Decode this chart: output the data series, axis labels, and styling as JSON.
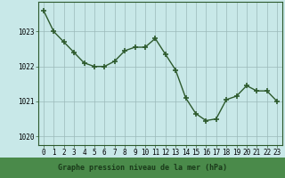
{
  "x": [
    0,
    1,
    2,
    3,
    4,
    5,
    6,
    7,
    8,
    9,
    10,
    11,
    12,
    13,
    14,
    15,
    16,
    17,
    18,
    19,
    20,
    21,
    22,
    23
  ],
  "y": [
    1023.6,
    1023.0,
    1022.7,
    1022.4,
    1022.1,
    1022.0,
    1022.0,
    1022.15,
    1022.45,
    1022.55,
    1022.55,
    1022.8,
    1022.35,
    1021.9,
    1021.1,
    1020.65,
    1020.45,
    1020.5,
    1021.05,
    1021.15,
    1021.45,
    1021.3,
    1021.3,
    1021.0
  ],
  "line_color": "#2d5a2d",
  "marker": "+",
  "marker_size": 4,
  "marker_linewidth": 1.2,
  "bg_color": "#c8e8e8",
  "grid_color": "#9bbaba",
  "title": "Graphe pression niveau de la mer (hPa)",
  "title_color": "#1a3a1a",
  "title_bg": "#4a8a4a",
  "ylim": [
    1019.75,
    1023.85
  ],
  "xlim": [
    -0.5,
    23.5
  ],
  "yticks": [
    1020,
    1021,
    1022,
    1023
  ],
  "xticks": [
    0,
    1,
    2,
    3,
    4,
    5,
    6,
    7,
    8,
    9,
    10,
    11,
    12,
    13,
    14,
    15,
    16,
    17,
    18,
    19,
    20,
    21,
    22,
    23
  ],
  "tick_labelsize": 5.5,
  "line_width": 1.0,
  "border_color": "#2d5a2d"
}
